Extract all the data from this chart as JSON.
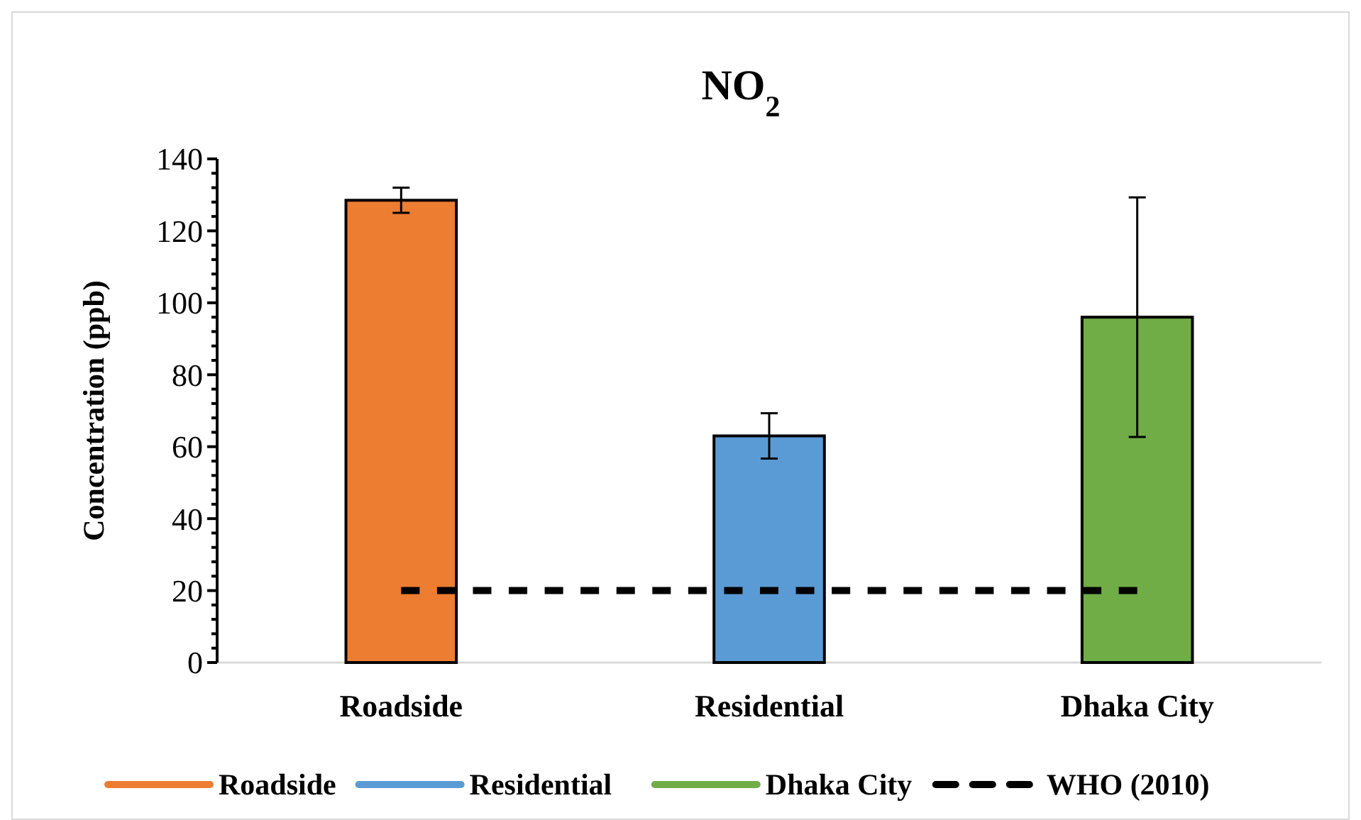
{
  "chart_data": {
    "type": "bar",
    "stacked": true,
    "title": "NO$_{2}$",
    "ylabel": "Concentration (ppb)",
    "categories": [
      "Roadside",
      "Residential",
      "Dhaka City"
    ],
    "series": [
      {
        "name": "Roadside",
        "color": "#ed7d31",
        "values": [
          128.5,
          null,
          null
        ],
        "errors": [
          3.5,
          null,
          null
        ]
      },
      {
        "name": "Residential",
        "color": "#5b9bd5",
        "values": [
          null,
          63,
          null
        ],
        "errors": [
          null,
          6.3,
          null
        ]
      },
      {
        "name": "Dhaka City",
        "color": "#70ad47",
        "values": [
          null,
          null,
          96
        ],
        "errors": [
          null,
          null,
          33.3
        ]
      },
      {
        "name": "WHO (2010)",
        "type": "line",
        "color": "#000000",
        "line_style": "dashed",
        "values": [
          20,
          20,
          20
        ]
      }
    ],
    "ylim": [
      0,
      140
    ],
    "yticks": [
      0,
      {
        "value": 4,
        "label": null
      },
      {
        "value": 8,
        "label": null
      },
      {
        "value": 12,
        "label": null
      },
      {
        "value": 16,
        "label": null
      },
      20,
      {
        "value": 24,
        "label": null
      },
      {
        "value": 28,
        "label": null
      },
      {
        "value": 32,
        "label": null
      },
      {
        "value": 36,
        "label": null
      },
      40,
      {
        "value": 44,
        "label": null
      },
      {
        "value": 48,
        "label": null
      },
      {
        "value": 52,
        "label": null
      },
      {
        "value": 56,
        "label": null
      },
      60,
      {
        "value": 64,
        "label": null
      },
      {
        "value": 68,
        "label": null
      },
      {
        "value": 72,
        "label": null
      },
      {
        "value": 76,
        "label": null
      },
      80,
      {
        "value": 84,
        "label": null
      },
      {
        "value": 88,
        "label": null
      },
      {
        "value": 92,
        "label": null
      },
      {
        "value": 96,
        "label": null
      },
      100,
      {
        "value": 104,
        "label": null
      },
      {
        "value": 108,
        "label": null
      },
      {
        "value": 112,
        "label": null
      },
      {
        "value": 116,
        "label": null
      },
      120,
      {
        "value": 124,
        "label": null
      },
      {
        "value": 128,
        "label": null
      },
      {
        "value": 132,
        "label": null
      },
      {
        "value": 136,
        "label": null
      },
      140
    ],
    "legend": "bottom"
  }
}
